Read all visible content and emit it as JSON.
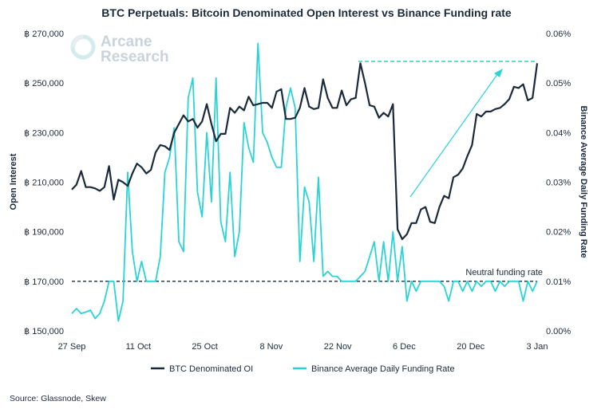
{
  "source": "Source: Glassnode, Skew",
  "logo": {
    "line1": "Arcane",
    "line2": "Research"
  },
  "colors": {
    "oi": "#1b2a3a",
    "funding": "#2ad4d4",
    "neutral": "#1b2a3a",
    "logo": "#c9d3dc"
  },
  "chart_data": {
    "type": "line",
    "title": "BTC Perpetuals: Bitcoin Denominated Open Interest vs Binance Funding rate",
    "ylabel": "Open Interest",
    "y2label": "Binance Average Daily Funding Rate",
    "x_ticks": [
      "27 Sep",
      "11 Oct",
      "25 Oct",
      "8 Nov",
      "22 Nov",
      "6 Dec",
      "20 Dec",
      "3 Jan"
    ],
    "x_range": [
      "2020-09-27",
      "2021-01-03"
    ],
    "ylim": [
      150000,
      270000
    ],
    "y_ticks": [
      "฿ 150,000",
      "฿ 170,000",
      "฿ 190,000",
      "฿ 210,000",
      "฿ 230,000",
      "฿ 250,000",
      "฿ 270,000"
    ],
    "y2lim": [
      0.0,
      0.06
    ],
    "y2_ticks": [
      "0.00%",
      "0.01%",
      "0.02%",
      "0.03%",
      "0.04%",
      "0.05%",
      "0.06%"
    ],
    "annotations": [
      {
        "text": "Neutral funding rate",
        "y2": 0.01
      }
    ],
    "grid": false,
    "legend_position": "bottom",
    "series": [
      {
        "name": "BTC Denominated OI",
        "axis": "left",
        "values": [
          207000,
          209000,
          214500,
          208000,
          208000,
          207500,
          206500,
          208000,
          216500,
          203000,
          211000,
          210000,
          208500,
          213500,
          217500,
          216000,
          213500,
          215000,
          222000,
          225000,
          224500,
          223000,
          230000,
          233500,
          237000,
          234500,
          235500,
          232000,
          234500,
          241500,
          233500,
          226500,
          229500,
          229500,
          240000,
          238000,
          240500,
          239000,
          244500,
          241000,
          241500,
          242000,
          242000,
          240000,
          246500,
          247500,
          235500,
          235500,
          236000,
          240000,
          248000,
          240500,
          239500,
          240000,
          251500,
          244000,
          240000,
          240000,
          247000,
          241000,
          243500,
          244000,
          258000,
          250000,
          241000,
          240500,
          236000,
          238000,
          236500,
          241500,
          191000,
          187000,
          189000,
          193500,
          193500,
          199000,
          200000,
          194000,
          193500,
          200000,
          204500,
          203500,
          212000,
          213000,
          215500,
          220500,
          225000,
          237500,
          236500,
          238500,
          238500,
          239500,
          240000,
          241500,
          243500,
          248500,
          248000,
          249500,
          243000,
          244000,
          258000
        ]
      },
      {
        "name": "Binance Average Daily Funding Rate",
        "axis": "right",
        "values": [
          0.0035,
          0.0045,
          0.0035,
          0.0038,
          0.0042,
          0.0025,
          0.0035,
          0.006,
          0.01,
          0.01,
          0.002,
          0.006,
          0.032,
          0.016,
          0.01,
          0.014,
          0.01,
          0.01,
          0.01,
          0.015,
          0.032,
          0.035,
          0.041,
          0.018,
          0.016,
          0.047,
          0.051,
          0.028,
          0.023,
          0.04,
          0.026,
          0.051,
          0.022,
          0.018,
          0.032,
          0.015,
          0.02,
          0.042,
          0.037,
          0.034,
          0.058,
          0.04,
          0.038,
          0.035,
          0.033,
          0.033,
          0.045,
          0.049,
          0.045,
          0.014,
          0.029,
          0.026,
          0.014,
          0.031,
          0.011,
          0.012,
          0.011,
          0.011,
          0.01,
          0.01,
          0.01,
          0.01,
          0.011,
          0.012,
          0.015,
          0.018,
          0.01,
          0.018,
          0.01,
          0.02,
          0.01,
          0.017,
          0.006,
          0.01,
          0.008,
          0.01,
          0.01,
          0.01,
          0.01,
          0.01,
          0.009,
          0.006,
          0.01,
          0.01,
          0.008,
          0.01,
          0.008,
          0.01,
          0.009,
          0.01,
          0.01,
          0.008,
          0.01,
          0.009,
          0.01,
          0.01,
          0.01,
          0.006,
          0.01,
          0.008,
          0.01
        ]
      }
    ]
  }
}
